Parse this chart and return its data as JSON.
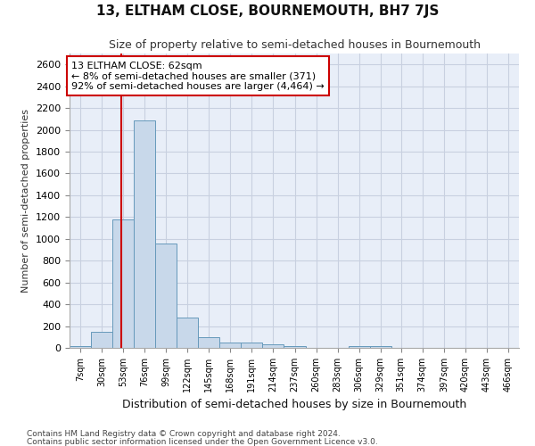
{
  "title": "13, ELTHAM CLOSE, BOURNEMOUTH, BH7 7JS",
  "subtitle": "Size of property relative to semi-detached houses in Bournemouth",
  "xlabel": "Distribution of semi-detached houses by size in Bournemouth",
  "ylabel": "Number of semi-detached properties",
  "bin_labels": [
    "7sqm",
    "30sqm",
    "53sqm",
    "76sqm",
    "99sqm",
    "122sqm",
    "145sqm",
    "168sqm",
    "191sqm",
    "214sqm",
    "237sqm",
    "260sqm",
    "283sqm",
    "306sqm",
    "329sqm",
    "351sqm",
    "374sqm",
    "397sqm",
    "420sqm",
    "443sqm",
    "466sqm"
  ],
  "bin_starts": [
    7,
    30,
    53,
    76,
    99,
    122,
    145,
    168,
    191,
    214,
    237,
    260,
    283,
    306,
    329,
    351,
    374,
    397,
    420,
    443,
    466
  ],
  "bin_width": 23,
  "bar_heights": [
    20,
    150,
    1175,
    2090,
    960,
    280,
    100,
    50,
    50,
    35,
    20,
    0,
    0,
    20,
    20,
    0,
    0,
    0,
    0,
    0,
    0
  ],
  "bar_color": "#c8d8ea",
  "bar_edge_color": "#6699bb",
  "property_size": 62,
  "property_label": "13 ELTHAM CLOSE: 62sqm",
  "pct_smaller": 8,
  "count_smaller": 371,
  "pct_larger": 92,
  "count_larger": 4464,
  "red_line_color": "#cc0000",
  "annotation_box_color": "#cc0000",
  "ylim": [
    0,
    2700
  ],
  "yticks": [
    0,
    200,
    400,
    600,
    800,
    1000,
    1200,
    1400,
    1600,
    1800,
    2000,
    2200,
    2400,
    2600
  ],
  "grid_color": "#c8d0e0",
  "background_color": "#e8eef8",
  "footnote1": "Contains HM Land Registry data © Crown copyright and database right 2024.",
  "footnote2": "Contains public sector information licensed under the Open Government Licence v3.0."
}
